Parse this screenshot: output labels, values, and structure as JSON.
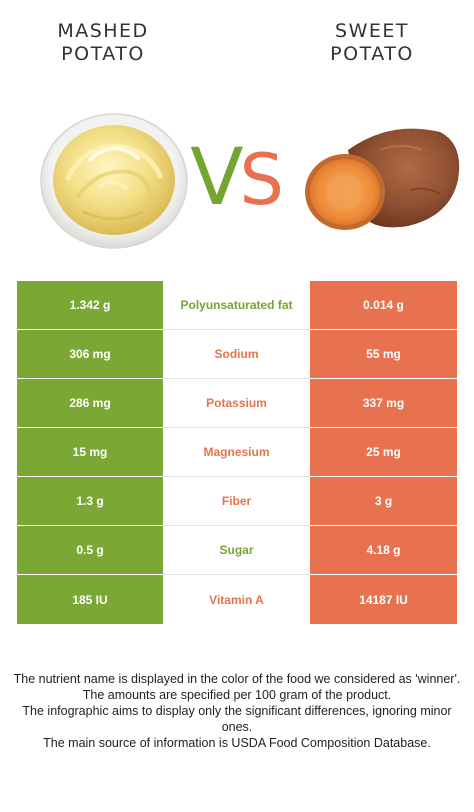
{
  "foods": {
    "left": {
      "line1": "MASHED",
      "line2": "POTATO",
      "color": "#7ba735"
    },
    "right": {
      "line1": "SWEET",
      "line2": "POTATO",
      "color": "#e8724f"
    }
  },
  "vs": {
    "v": "V",
    "s": "S"
  },
  "rows": [
    {
      "left": "1.342 g",
      "nutrient": "Polyunsaturated fat",
      "right": "0.014 g",
      "winner": "left"
    },
    {
      "left": "306 mg",
      "nutrient": "Sodium",
      "right": "55 mg",
      "winner": "right"
    },
    {
      "left": "286 mg",
      "nutrient": "Potassium",
      "right": "337 mg",
      "winner": "right"
    },
    {
      "left": "15 mg",
      "nutrient": "Magnesium",
      "right": "25 mg",
      "winner": "right"
    },
    {
      "left": "1.3 g",
      "nutrient": "Fiber",
      "right": "3 g",
      "winner": "right"
    },
    {
      "left": "0.5 g",
      "nutrient": "Sugar",
      "right": "4.18 g",
      "winner": "left"
    },
    {
      "left": "185 IU",
      "nutrient": "Vitamin A",
      "right": "14187 IU",
      "winner": "right"
    }
  ],
  "footnote": {
    "line1": "The nutrient name is displayed in the color of the food we considered as 'winner'.",
    "line2": "The amounts are specified per 100 gram of the product.",
    "line3": "The infographic aims to display only the significant differences, ignoring minor ones.",
    "line4": "The main source of information is USDA Food Composition Database."
  }
}
